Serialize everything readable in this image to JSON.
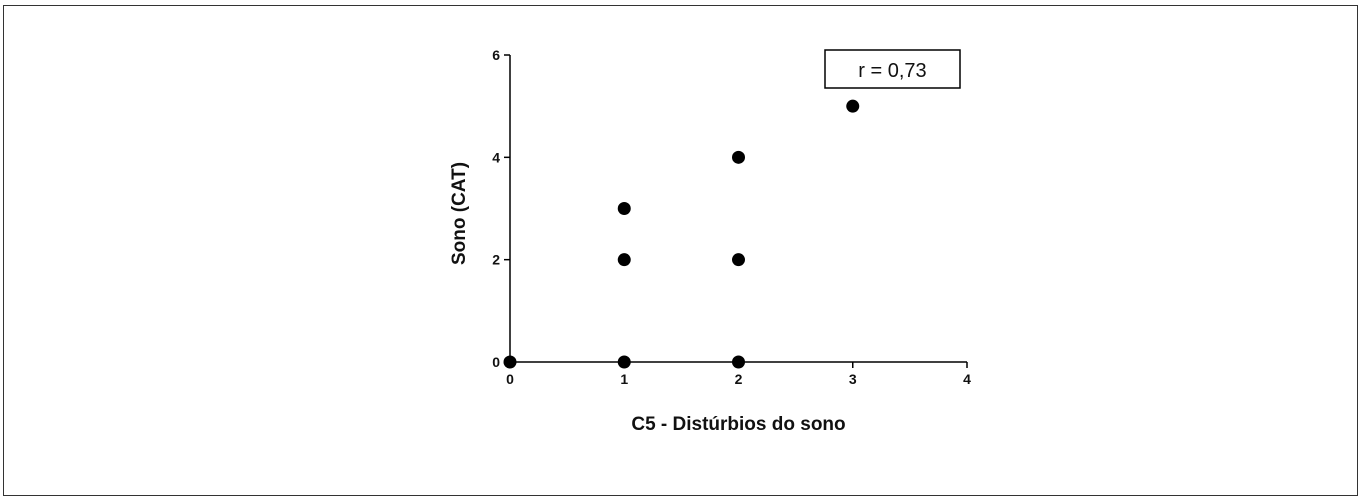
{
  "chart_data": {
    "type": "scatter",
    "title": "",
    "xlabel": "C5 - Distúrbios do sono",
    "ylabel": "Sono  (CAT)",
    "xlim": [
      0,
      4
    ],
    "ylim": [
      0,
      6
    ],
    "x_ticks": [
      "0",
      "1",
      "2",
      "3",
      "4"
    ],
    "y_ticks": [
      "0",
      "2",
      "4",
      "6"
    ],
    "points": [
      {
        "x": 0,
        "y": 0
      },
      {
        "x": 1,
        "y": 0
      },
      {
        "x": 1,
        "y": 2
      },
      {
        "x": 1,
        "y": 3
      },
      {
        "x": 2,
        "y": 0
      },
      {
        "x": 2,
        "y": 2
      },
      {
        "x": 2,
        "y": 4
      },
      {
        "x": 3,
        "y": 5
      }
    ],
    "annotation": "r = 0,73",
    "grid": false,
    "marker_color": "#000000"
  }
}
